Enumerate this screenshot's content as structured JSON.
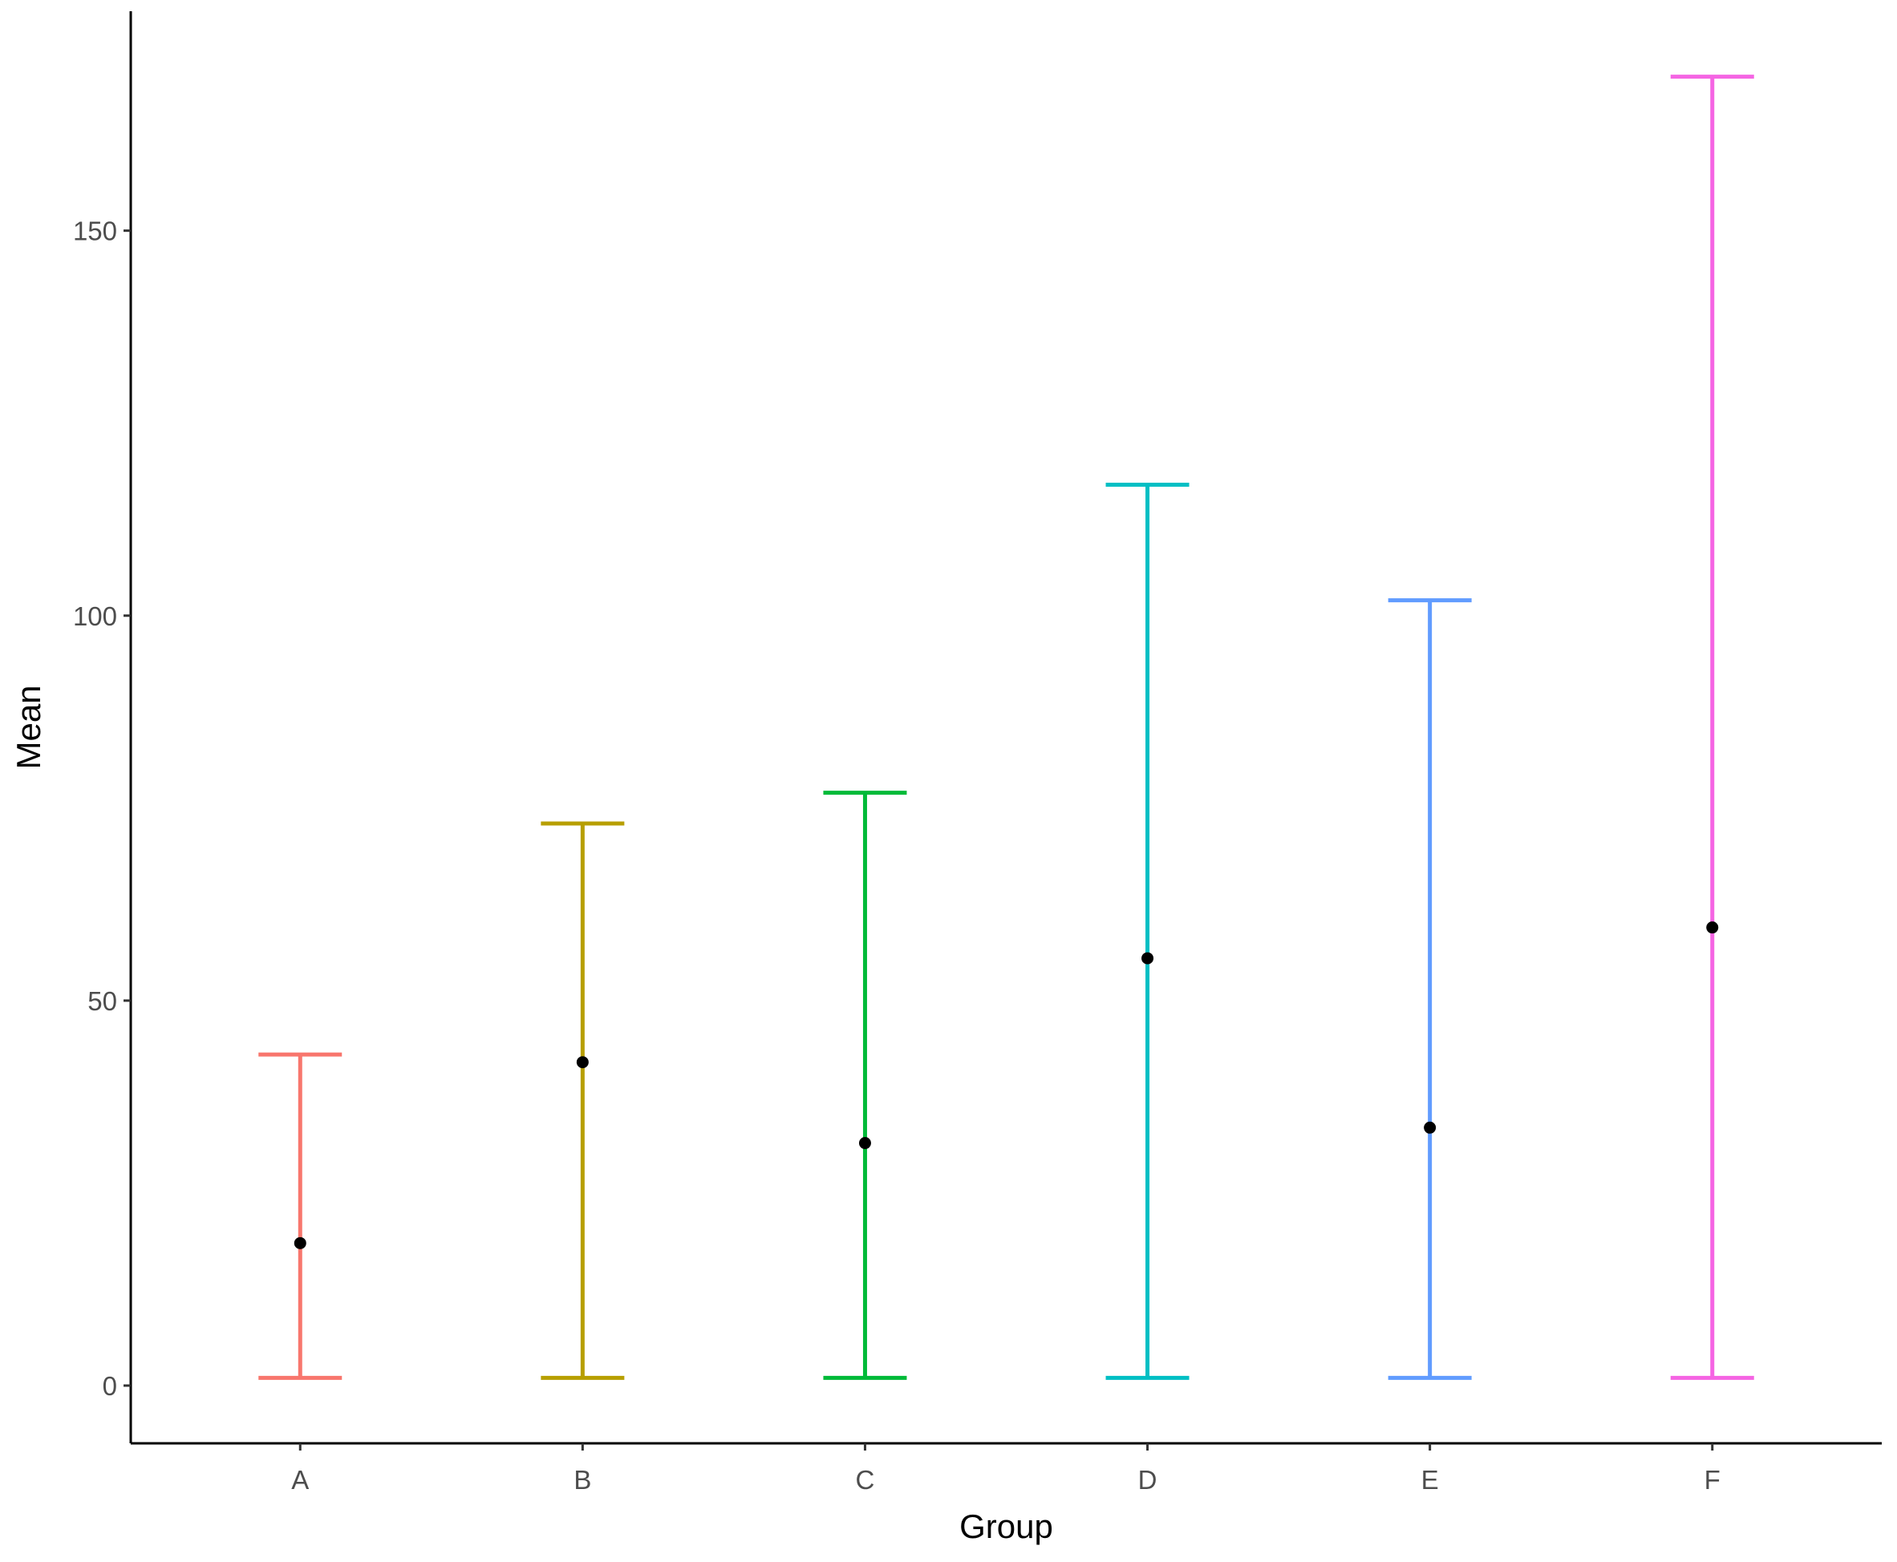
{
  "chart_data": {
    "type": "errorbar",
    "xlabel": "Group",
    "ylabel": "Mean",
    "categories": [
      "A",
      "B",
      "C",
      "D",
      "E",
      "F"
    ],
    "means": [
      18.5,
      42,
      31.5,
      55.5,
      33.5,
      59.5
    ],
    "lower": [
      1,
      1,
      1,
      1,
      1,
      1
    ],
    "upper": [
      43,
      73,
      77,
      117,
      102,
      170
    ],
    "colors": [
      "#F8766D",
      "#B79F00",
      "#00BA38",
      "#00BFC4",
      "#619CFF",
      "#F564E3"
    ],
    "point_color": "#000000",
    "yticks": [
      0,
      50,
      100,
      150
    ],
    "ylim": [
      -7.5,
      178.5
    ],
    "grid": false,
    "legend": "none"
  }
}
